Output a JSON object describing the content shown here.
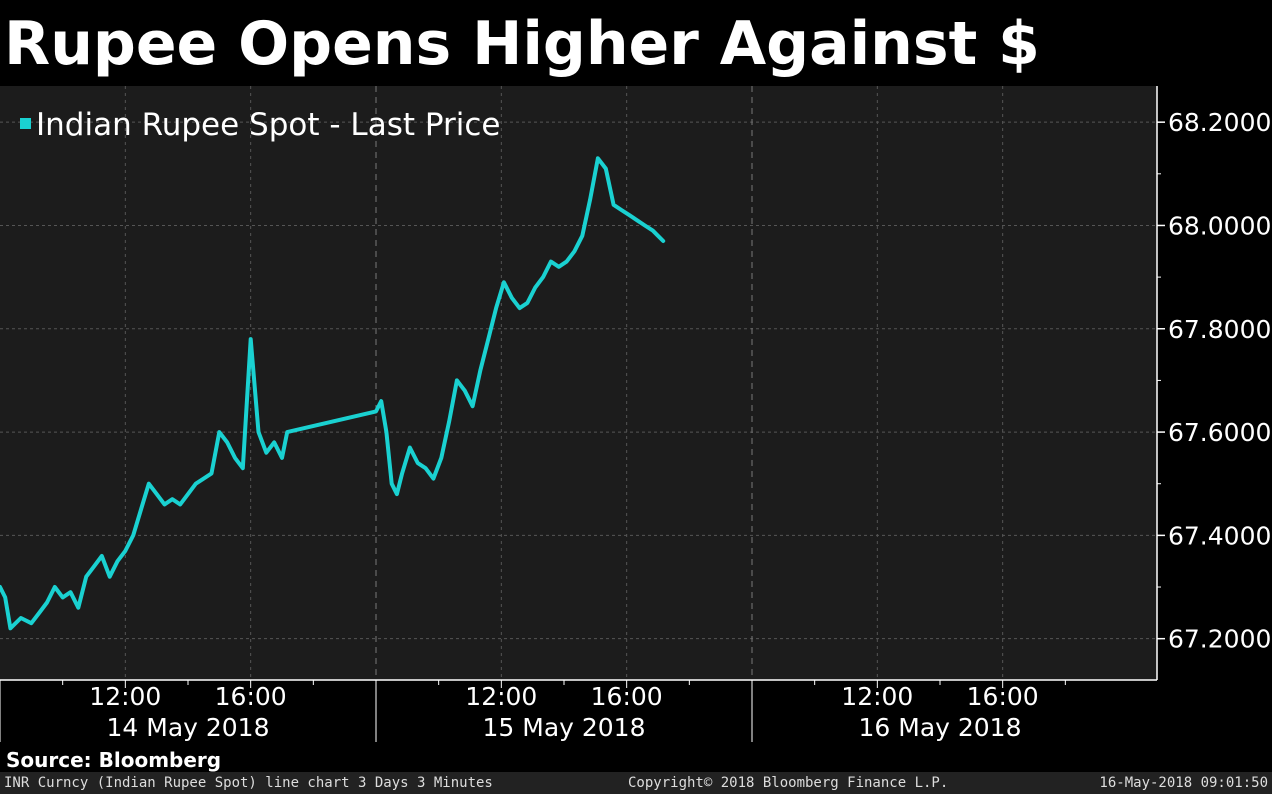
{
  "header": {
    "title": "Rupee Opens Higher Against $"
  },
  "colors": {
    "background": "#000000",
    "plot_background": "#1c1c1c",
    "line": "#1ad1d1",
    "grid": "#555555",
    "text": "#ffffff"
  },
  "chart_data": {
    "type": "line",
    "title": "",
    "legend": {
      "position": "top-left",
      "entries": [
        "Indian Rupee Spot - Last Price"
      ]
    },
    "series": [
      {
        "name": "Indian Rupee Spot - Last Price",
        "x": [
          "2018-05-14T08:00",
          "2018-05-14T08:10",
          "2018-05-14T08:20",
          "2018-05-14T08:40",
          "2018-05-14T09:00",
          "2018-05-14T09:15",
          "2018-05-14T09:30",
          "2018-05-14T09:45",
          "2018-05-14T10:00",
          "2018-05-14T10:15",
          "2018-05-14T10:30",
          "2018-05-14T10:45",
          "2018-05-14T11:00",
          "2018-05-14T11:15",
          "2018-05-14T11:30",
          "2018-05-14T11:45",
          "2018-05-14T12:00",
          "2018-05-14T12:15",
          "2018-05-14T12:30",
          "2018-05-14T12:45",
          "2018-05-14T13:00",
          "2018-05-14T13:15",
          "2018-05-14T13:30",
          "2018-05-14T13:45",
          "2018-05-14T14:00",
          "2018-05-14T14:15",
          "2018-05-14T14:30",
          "2018-05-14T14:45",
          "2018-05-14T15:00",
          "2018-05-14T15:15",
          "2018-05-14T15:30",
          "2018-05-14T15:45",
          "2018-05-14T16:00",
          "2018-05-14T16:15",
          "2018-05-14T16:30",
          "2018-05-14T16:45",
          "2018-05-14T17:00",
          "2018-05-14T17:10",
          "2018-05-15T08:00",
          "2018-05-15T08:10",
          "2018-05-15T08:20",
          "2018-05-15T08:30",
          "2018-05-15T08:40",
          "2018-05-15T08:50",
          "2018-05-15T09:05",
          "2018-05-15T09:20",
          "2018-05-15T09:35",
          "2018-05-15T09:50",
          "2018-05-15T10:05",
          "2018-05-15T10:20",
          "2018-05-15T10:35",
          "2018-05-15T10:50",
          "2018-05-15T11:05",
          "2018-05-15T11:20",
          "2018-05-15T11:35",
          "2018-05-15T11:50",
          "2018-05-15T12:05",
          "2018-05-15T12:20",
          "2018-05-15T12:35",
          "2018-05-15T12:50",
          "2018-05-15T13:05",
          "2018-05-15T13:20",
          "2018-05-15T13:35",
          "2018-05-15T13:50",
          "2018-05-15T14:05",
          "2018-05-15T14:20",
          "2018-05-15T14:35",
          "2018-05-15T14:50",
          "2018-05-15T15:05",
          "2018-05-15T15:20",
          "2018-05-15T15:35",
          "2018-05-15T15:50",
          "2018-05-15T16:05",
          "2018-05-15T16:20",
          "2018-05-15T16:35",
          "2018-05-15T16:50",
          "2018-05-15T17:00",
          "2018-05-15T17:10"
        ],
        "y": [
          67.3,
          67.28,
          67.22,
          67.24,
          67.23,
          67.25,
          67.27,
          67.3,
          67.28,
          67.29,
          67.26,
          67.32,
          67.34,
          67.36,
          67.32,
          67.35,
          67.37,
          67.4,
          67.45,
          67.5,
          67.48,
          67.46,
          67.47,
          67.46,
          67.48,
          67.5,
          67.51,
          67.52,
          67.6,
          67.58,
          67.55,
          67.53,
          67.78,
          67.6,
          67.56,
          67.58,
          67.55,
          67.6,
          67.64,
          67.66,
          67.6,
          67.5,
          67.48,
          67.52,
          67.57,
          67.54,
          67.53,
          67.51,
          67.55,
          67.62,
          67.7,
          67.68,
          67.65,
          67.72,
          67.78,
          67.84,
          67.89,
          67.86,
          67.84,
          67.85,
          67.88,
          67.9,
          67.93,
          67.92,
          67.93,
          67.95,
          67.98,
          68.05,
          68.13,
          68.11,
          68.04,
          68.03,
          68.02,
          68.01,
          68.0,
          67.99,
          67.98,
          67.97
        ]
      }
    ],
    "x_tick_labels": [
      "12:00",
      "16:00",
      "12:00",
      "16:00",
      "12:00",
      "16:00"
    ],
    "x_date_labels": [
      "14 May 2018",
      "15 May 2018",
      "16 May 2018"
    ],
    "y_tick_labels": [
      "68.2000",
      "68.0000",
      "67.8000",
      "67.6000",
      "67.4000",
      "67.2000"
    ],
    "ylim": [
      67.12,
      68.27
    ],
    "xlim": [
      "2018-05-14T08:00",
      "2018-05-16T20:00"
    ],
    "grid": true,
    "y_axis_side": "right"
  },
  "footer": {
    "source": "Source: Bloomberg",
    "left": "INR Curncy (Indian Rupee Spot) line chart 3 Days 3 Minutes",
    "center": "Copyright© 2018 Bloomberg Finance L.P.",
    "right": "16-May-2018 09:01:50"
  }
}
